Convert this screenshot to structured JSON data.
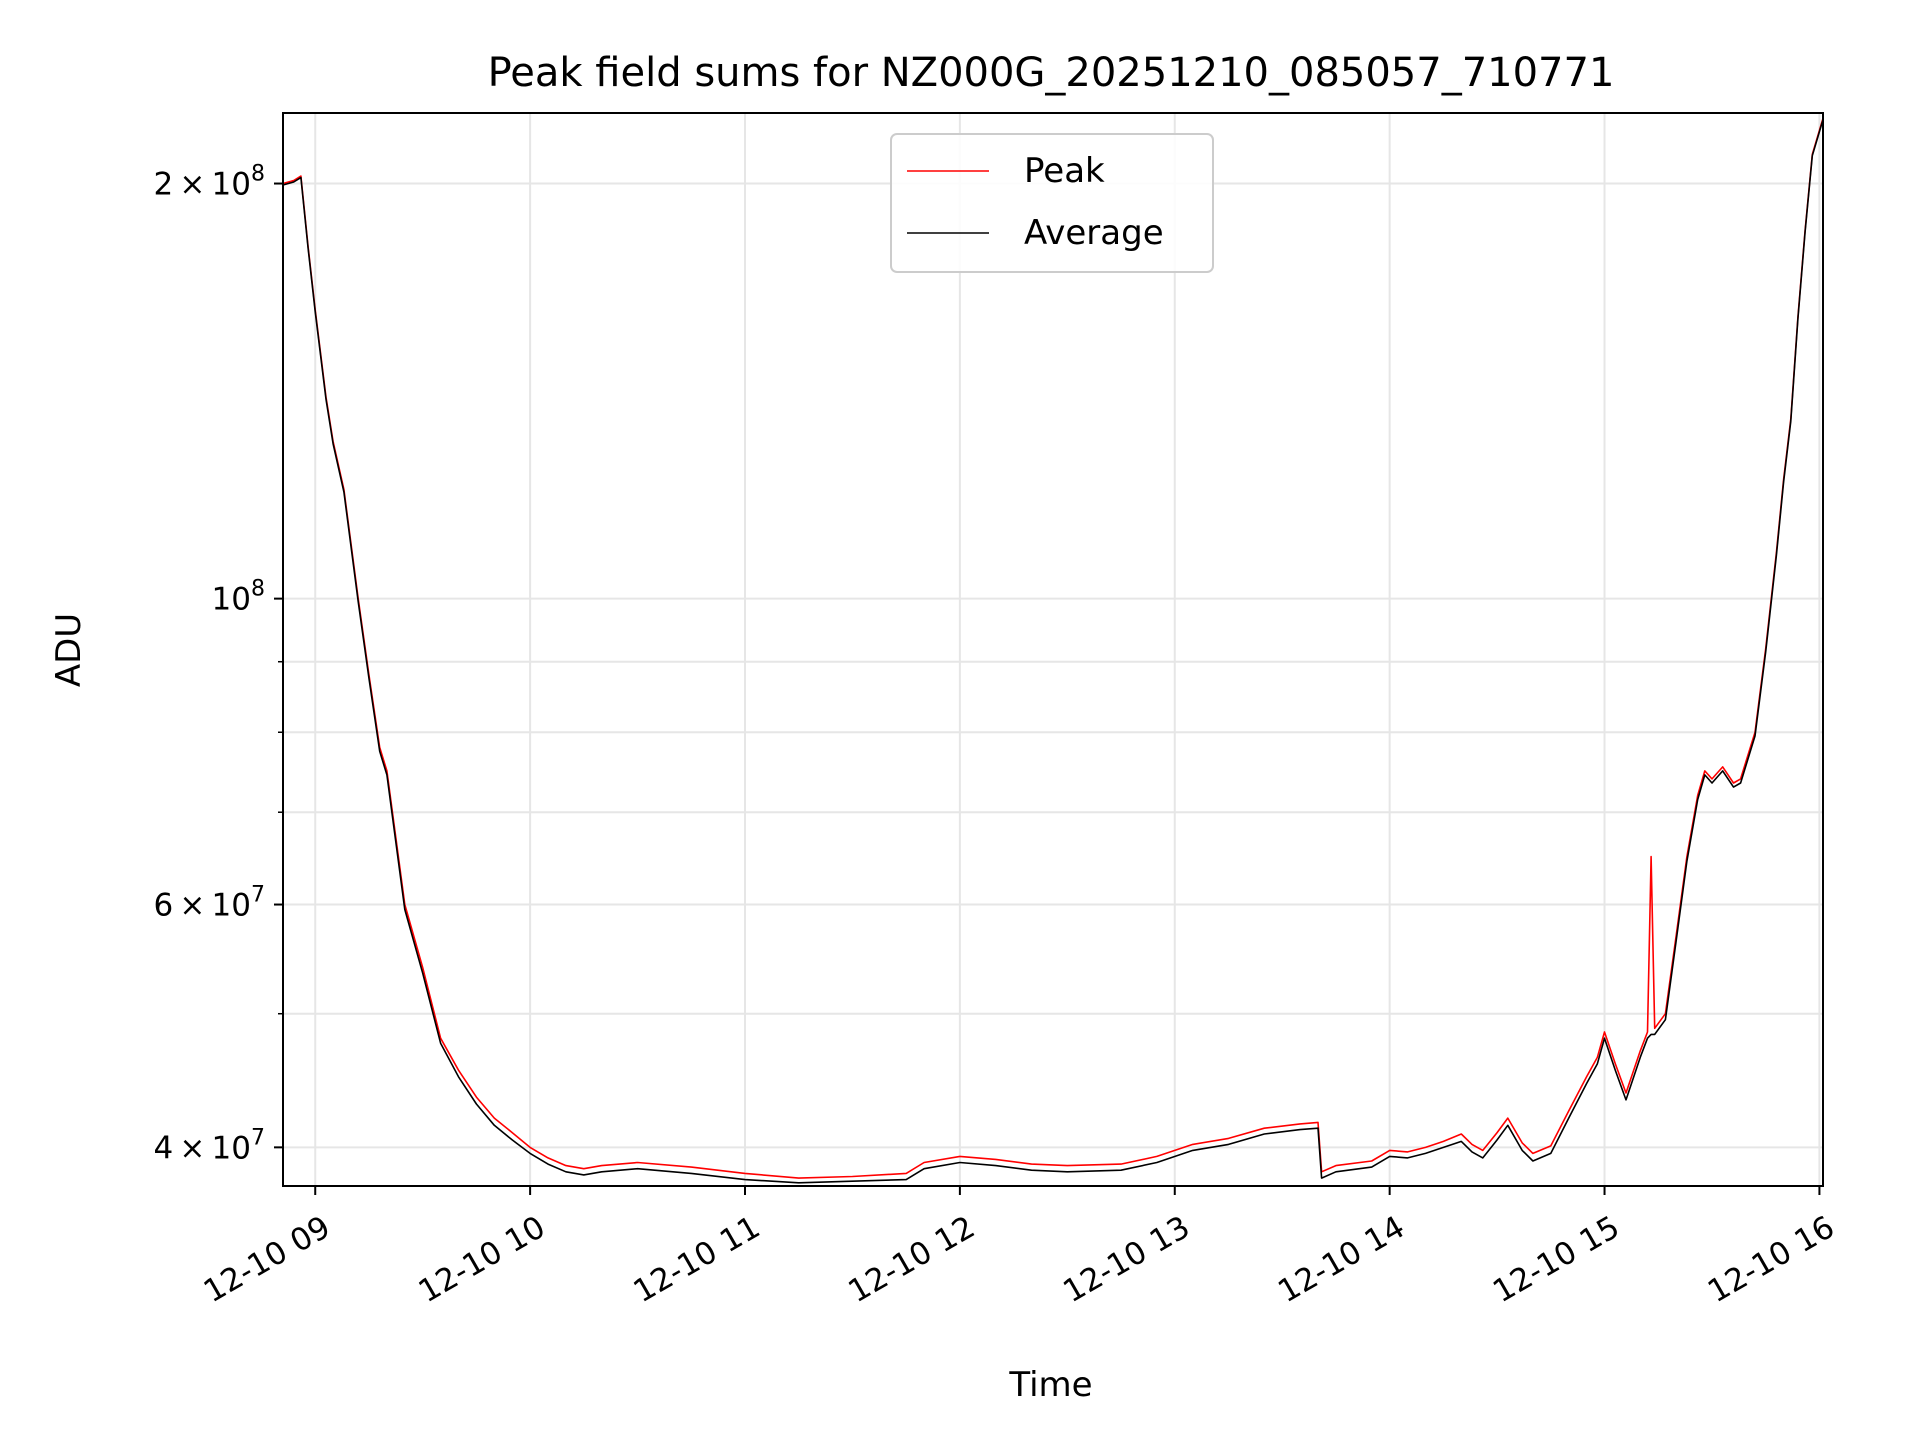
{
  "chart_data": {
    "type": "line",
    "title": "Peak field sums for NZ000G_20251210_085057_710771",
    "xlabel": "Time",
    "ylabel": "ADU",
    "yscale": "log",
    "ylim": [
      37500000,
      225000000
    ],
    "xlim": [
      "2025-12-10 08:51",
      "2025-12-10 16:01"
    ],
    "grid": true,
    "legend_position": "top-center",
    "x_ticks": [
      {
        "value": "2025-12-10 09:00",
        "label": "12-10 09"
      },
      {
        "value": "2025-12-10 10:00",
        "label": "12-10 10"
      },
      {
        "value": "2025-12-10 11:00",
        "label": "12-10 11"
      },
      {
        "value": "2025-12-10 12:00",
        "label": "12-10 12"
      },
      {
        "value": "2025-12-10 13:00",
        "label": "12-10 13"
      },
      {
        "value": "2025-12-10 14:00",
        "label": "12-10 14"
      },
      {
        "value": "2025-12-10 15:00",
        "label": "12-10 15"
      },
      {
        "value": "2025-12-10 16:00",
        "label": "12-10 16"
      }
    ],
    "y_ticks": [
      {
        "value": 40000000,
        "mantissa": "4",
        "exp": "7"
      },
      {
        "value": 60000000,
        "mantissa": "6",
        "exp": "7"
      },
      {
        "value": 100000000,
        "mantissa": "",
        "exp": "8"
      },
      {
        "value": 200000000,
        "mantissa": "2",
        "exp": "8"
      }
    ],
    "y_minor": [
      50000000,
      70000000,
      80000000,
      90000000
    ],
    "series": [
      {
        "name": "Peak",
        "color": "#ff0000",
        "points": [
          [
            "2025-12-10 08:51",
            200000000
          ],
          [
            "2025-12-10 08:54",
            201000000
          ],
          [
            "2025-12-10 08:56",
            202500000
          ],
          [
            "2025-12-10 08:58",
            180000000
          ],
          [
            "2025-12-10 09:00",
            162000000
          ],
          [
            "2025-12-10 09:03",
            140000000
          ],
          [
            "2025-12-10 09:05",
            130000000
          ],
          [
            "2025-12-10 09:08",
            120000000
          ],
          [
            "2025-12-10 09:12",
            100000000
          ],
          [
            "2025-12-10 09:15",
            88000000
          ],
          [
            "2025-12-10 09:18",
            78000000
          ],
          [
            "2025-12-10 09:20",
            75000000
          ],
          [
            "2025-12-10 09:25",
            60000000
          ],
          [
            "2025-12-10 09:30",
            54000000
          ],
          [
            "2025-12-10 09:35",
            48000000
          ],
          [
            "2025-12-10 09:40",
            45500000
          ],
          [
            "2025-12-10 09:45",
            43500000
          ],
          [
            "2025-12-10 09:50",
            42000000
          ],
          [
            "2025-12-10 09:55",
            41000000
          ],
          [
            "2025-12-10 10:00",
            40000000
          ],
          [
            "2025-12-10 10:05",
            39300000
          ],
          [
            "2025-12-10 10:10",
            38800000
          ],
          [
            "2025-12-10 10:15",
            38600000
          ],
          [
            "2025-12-10 10:20",
            38800000
          ],
          [
            "2025-12-10 10:30",
            39000000
          ],
          [
            "2025-12-10 10:45",
            38700000
          ],
          [
            "2025-12-10 11:00",
            38300000
          ],
          [
            "2025-12-10 11:15",
            38000000
          ],
          [
            "2025-12-10 11:30",
            38100000
          ],
          [
            "2025-12-10 11:45",
            38300000
          ],
          [
            "2025-12-10 11:50",
            39000000
          ],
          [
            "2025-12-10 12:00",
            39400000
          ],
          [
            "2025-12-10 12:10",
            39200000
          ],
          [
            "2025-12-10 12:20",
            38900000
          ],
          [
            "2025-12-10 12:30",
            38800000
          ],
          [
            "2025-12-10 12:45",
            38900000
          ],
          [
            "2025-12-10 12:55",
            39400000
          ],
          [
            "2025-12-10 13:05",
            40200000
          ],
          [
            "2025-12-10 13:15",
            40600000
          ],
          [
            "2025-12-10 13:25",
            41300000
          ],
          [
            "2025-12-10 13:35",
            41600000
          ],
          [
            "2025-12-10 13:40",
            41700000
          ],
          [
            "2025-12-10 13:41",
            38400000
          ],
          [
            "2025-12-10 13:45",
            38800000
          ],
          [
            "2025-12-10 13:55",
            39100000
          ],
          [
            "2025-12-10 14:00",
            39800000
          ],
          [
            "2025-12-10 14:05",
            39700000
          ],
          [
            "2025-12-10 14:10",
            40000000
          ],
          [
            "2025-12-10 14:15",
            40400000
          ],
          [
            "2025-12-10 14:20",
            40900000
          ],
          [
            "2025-12-10 14:23",
            40200000
          ],
          [
            "2025-12-10 14:26",
            39800000
          ],
          [
            "2025-12-10 14:30",
            41000000
          ],
          [
            "2025-12-10 14:33",
            42000000
          ],
          [
            "2025-12-10 14:37",
            40300000
          ],
          [
            "2025-12-10 14:40",
            39600000
          ],
          [
            "2025-12-10 14:45",
            40100000
          ],
          [
            "2025-12-10 14:50",
            42500000
          ],
          [
            "2025-12-10 14:55",
            45000000
          ],
          [
            "2025-12-10 14:58",
            46500000
          ],
          [
            "2025-12-10 15:00",
            48500000
          ],
          [
            "2025-12-10 15:03",
            46000000
          ],
          [
            "2025-12-10 15:06",
            43800000
          ],
          [
            "2025-12-10 15:10",
            47000000
          ],
          [
            "2025-12-10 15:12",
            48500000
          ],
          [
            "2025-12-10 15:13",
            65000000
          ],
          [
            "2025-12-10 15:14",
            48800000
          ],
          [
            "2025-12-10 15:17",
            50000000
          ],
          [
            "2025-12-10 15:20",
            57000000
          ],
          [
            "2025-12-10 15:23",
            65000000
          ],
          [
            "2025-12-10 15:26",
            72000000
          ],
          [
            "2025-12-10 15:28",
            75000000
          ],
          [
            "2025-12-10 15:30",
            74000000
          ],
          [
            "2025-12-10 15:33",
            75500000
          ],
          [
            "2025-12-10 15:36",
            73500000
          ],
          [
            "2025-12-10 15:38",
            74000000
          ],
          [
            "2025-12-10 15:42",
            80000000
          ],
          [
            "2025-12-10 15:45",
            92000000
          ],
          [
            "2025-12-10 15:48",
            108000000
          ],
          [
            "2025-12-10 15:50",
            122000000
          ],
          [
            "2025-12-10 15:52",
            135000000
          ],
          [
            "2025-12-10 15:54",
            160000000
          ],
          [
            "2025-12-10 15:56",
            185000000
          ],
          [
            "2025-12-10 15:58",
            210000000
          ],
          [
            "2025-12-10 16:01",
            223000000
          ]
        ]
      },
      {
        "name": "Average",
        "color": "#000000",
        "points": [
          [
            "2025-12-10 08:51",
            199500000
          ],
          [
            "2025-12-10 08:54",
            200500000
          ],
          [
            "2025-12-10 08:56",
            202000000
          ],
          [
            "2025-12-10 08:58",
            179500000
          ],
          [
            "2025-12-10 09:00",
            161500000
          ],
          [
            "2025-12-10 09:03",
            139500000
          ],
          [
            "2025-12-10 09:05",
            129500000
          ],
          [
            "2025-12-10 09:08",
            119500000
          ],
          [
            "2025-12-10 09:12",
            99500000
          ],
          [
            "2025-12-10 09:15",
            87500000
          ],
          [
            "2025-12-10 09:18",
            77500000
          ],
          [
            "2025-12-10 09:20",
            74500000
          ],
          [
            "2025-12-10 09:25",
            59500000
          ],
          [
            "2025-12-10 09:30",
            53500000
          ],
          [
            "2025-12-10 09:35",
            47600000
          ],
          [
            "2025-12-10 09:40",
            45000000
          ],
          [
            "2025-12-10 09:45",
            43000000
          ],
          [
            "2025-12-10 09:50",
            41500000
          ],
          [
            "2025-12-10 09:55",
            40500000
          ],
          [
            "2025-12-10 10:00",
            39600000
          ],
          [
            "2025-12-10 10:05",
            38900000
          ],
          [
            "2025-12-10 10:10",
            38400000
          ],
          [
            "2025-12-10 10:15",
            38200000
          ],
          [
            "2025-12-10 10:20",
            38400000
          ],
          [
            "2025-12-10 10:30",
            38600000
          ],
          [
            "2025-12-10 10:45",
            38300000
          ],
          [
            "2025-12-10 11:00",
            37900000
          ],
          [
            "2025-12-10 11:15",
            37700000
          ],
          [
            "2025-12-10 11:30",
            37800000
          ],
          [
            "2025-12-10 11:45",
            37900000
          ],
          [
            "2025-12-10 11:50",
            38600000
          ],
          [
            "2025-12-10 12:00",
            39000000
          ],
          [
            "2025-12-10 12:10",
            38800000
          ],
          [
            "2025-12-10 12:20",
            38500000
          ],
          [
            "2025-12-10 12:30",
            38400000
          ],
          [
            "2025-12-10 12:45",
            38500000
          ],
          [
            "2025-12-10 12:55",
            39000000
          ],
          [
            "2025-12-10 13:05",
            39800000
          ],
          [
            "2025-12-10 13:15",
            40200000
          ],
          [
            "2025-12-10 13:25",
            40900000
          ],
          [
            "2025-12-10 13:35",
            41200000
          ],
          [
            "2025-12-10 13:40",
            41300000
          ],
          [
            "2025-12-10 13:41",
            38000000
          ],
          [
            "2025-12-10 13:45",
            38400000
          ],
          [
            "2025-12-10 13:55",
            38700000
          ],
          [
            "2025-12-10 14:00",
            39400000
          ],
          [
            "2025-12-10 14:05",
            39300000
          ],
          [
            "2025-12-10 14:10",
            39600000
          ],
          [
            "2025-12-10 14:15",
            40000000
          ],
          [
            "2025-12-10 14:20",
            40400000
          ],
          [
            "2025-12-10 14:23",
            39700000
          ],
          [
            "2025-12-10 14:26",
            39300000
          ],
          [
            "2025-12-10 14:30",
            40500000
          ],
          [
            "2025-12-10 14:33",
            41500000
          ],
          [
            "2025-12-10 14:37",
            39800000
          ],
          [
            "2025-12-10 14:40",
            39100000
          ],
          [
            "2025-12-10 14:45",
            39600000
          ],
          [
            "2025-12-10 14:50",
            42000000
          ],
          [
            "2025-12-10 14:55",
            44500000
          ],
          [
            "2025-12-10 14:58",
            46000000
          ],
          [
            "2025-12-10 15:00",
            48000000
          ],
          [
            "2025-12-10 15:03",
            45500000
          ],
          [
            "2025-12-10 15:06",
            43300000
          ],
          [
            "2025-12-10 15:10",
            46500000
          ],
          [
            "2025-12-10 15:12",
            48000000
          ],
          [
            "2025-12-10 15:13",
            48300000
          ],
          [
            "2025-12-10 15:14",
            48300000
          ],
          [
            "2025-12-10 15:17",
            49500000
          ],
          [
            "2025-12-10 15:20",
            56500000
          ],
          [
            "2025-12-10 15:23",
            64500000
          ],
          [
            "2025-12-10 15:26",
            71500000
          ],
          [
            "2025-12-10 15:28",
            74500000
          ],
          [
            "2025-12-10 15:30",
            73500000
          ],
          [
            "2025-12-10 15:33",
            75000000
          ],
          [
            "2025-12-10 15:36",
            73000000
          ],
          [
            "2025-12-10 15:38",
            73500000
          ],
          [
            "2025-12-10 15:42",
            79500000
          ],
          [
            "2025-12-10 15:45",
            91500000
          ],
          [
            "2025-12-10 15:48",
            107500000
          ],
          [
            "2025-12-10 15:50",
            121500000
          ],
          [
            "2025-12-10 15:52",
            134500000
          ],
          [
            "2025-12-10 15:54",
            159500000
          ],
          [
            "2025-12-10 15:56",
            184500000
          ],
          [
            "2025-12-10 15:58",
            209500000
          ],
          [
            "2025-12-10 16:01",
            222500000
          ]
        ]
      }
    ]
  }
}
